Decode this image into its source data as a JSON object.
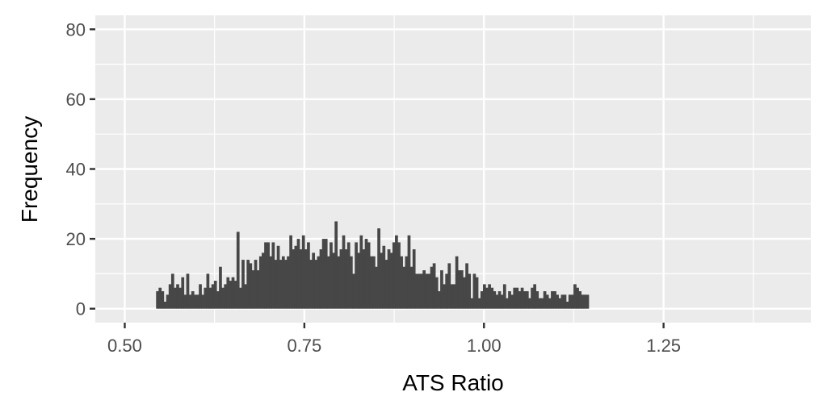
{
  "chart_data": {
    "type": "histogram",
    "xlabel": "ATS Ratio",
    "ylabel": "Frequency",
    "xlim": [
      0.459,
      1.455
    ],
    "ylim": [
      -4,
      84
    ],
    "x_ticks": [
      0.5,
      0.75,
      1.0,
      1.25
    ],
    "x_tick_labels": [
      "0.50",
      "0.75",
      "1.00",
      "1.25"
    ],
    "y_ticks": [
      0,
      20,
      40,
      60,
      80
    ],
    "y_tick_labels": [
      "0",
      "20",
      "40",
      "60",
      "80"
    ],
    "grid": true,
    "bin_width": 0.0035,
    "bin_start": 0.5436,
    "counts": [
      5,
      6,
      5,
      2,
      4,
      7,
      10,
      6,
      7,
      6,
      9,
      4,
      10,
      4,
      5,
      4,
      4,
      7,
      4,
      6,
      10,
      6,
      7,
      8,
      5,
      12,
      6,
      7,
      9,
      8,
      9,
      8,
      22,
      6,
      14,
      7,
      14,
      13,
      11,
      14,
      11,
      15,
      16,
      19,
      19,
      15,
      19,
      14,
      18,
      14,
      15,
      14,
      15,
      21,
      17,
      18,
      20,
      17,
      21,
      17,
      19,
      14,
      16,
      14,
      15,
      17,
      20,
      20,
      15,
      19,
      16,
      25,
      15,
      17,
      21,
      17,
      19,
      15,
      10,
      19,
      16,
      21,
      17,
      20,
      19,
      15,
      15,
      12,
      23,
      16,
      18,
      14,
      17,
      16,
      19,
      21,
      19,
      15,
      12,
      15,
      21,
      12,
      17,
      10,
      10,
      10,
      11,
      10,
      10,
      12,
      13,
      9,
      5,
      11,
      7,
      10,
      13,
      7,
      7,
      15,
      11,
      11,
      9,
      13,
      10,
      3,
      10,
      9,
      3,
      5,
      7,
      6,
      7,
      6,
      5,
      4,
      5,
      4,
      7,
      3,
      5,
      4,
      6,
      6,
      5,
      6,
      5,
      5,
      3,
      6,
      7,
      5,
      3,
      3,
      5,
      4,
      3,
      5,
      5,
      4,
      3,
      4,
      4,
      2,
      4,
      4,
      7,
      6,
      5,
      4,
      4,
      4
    ]
  }
}
